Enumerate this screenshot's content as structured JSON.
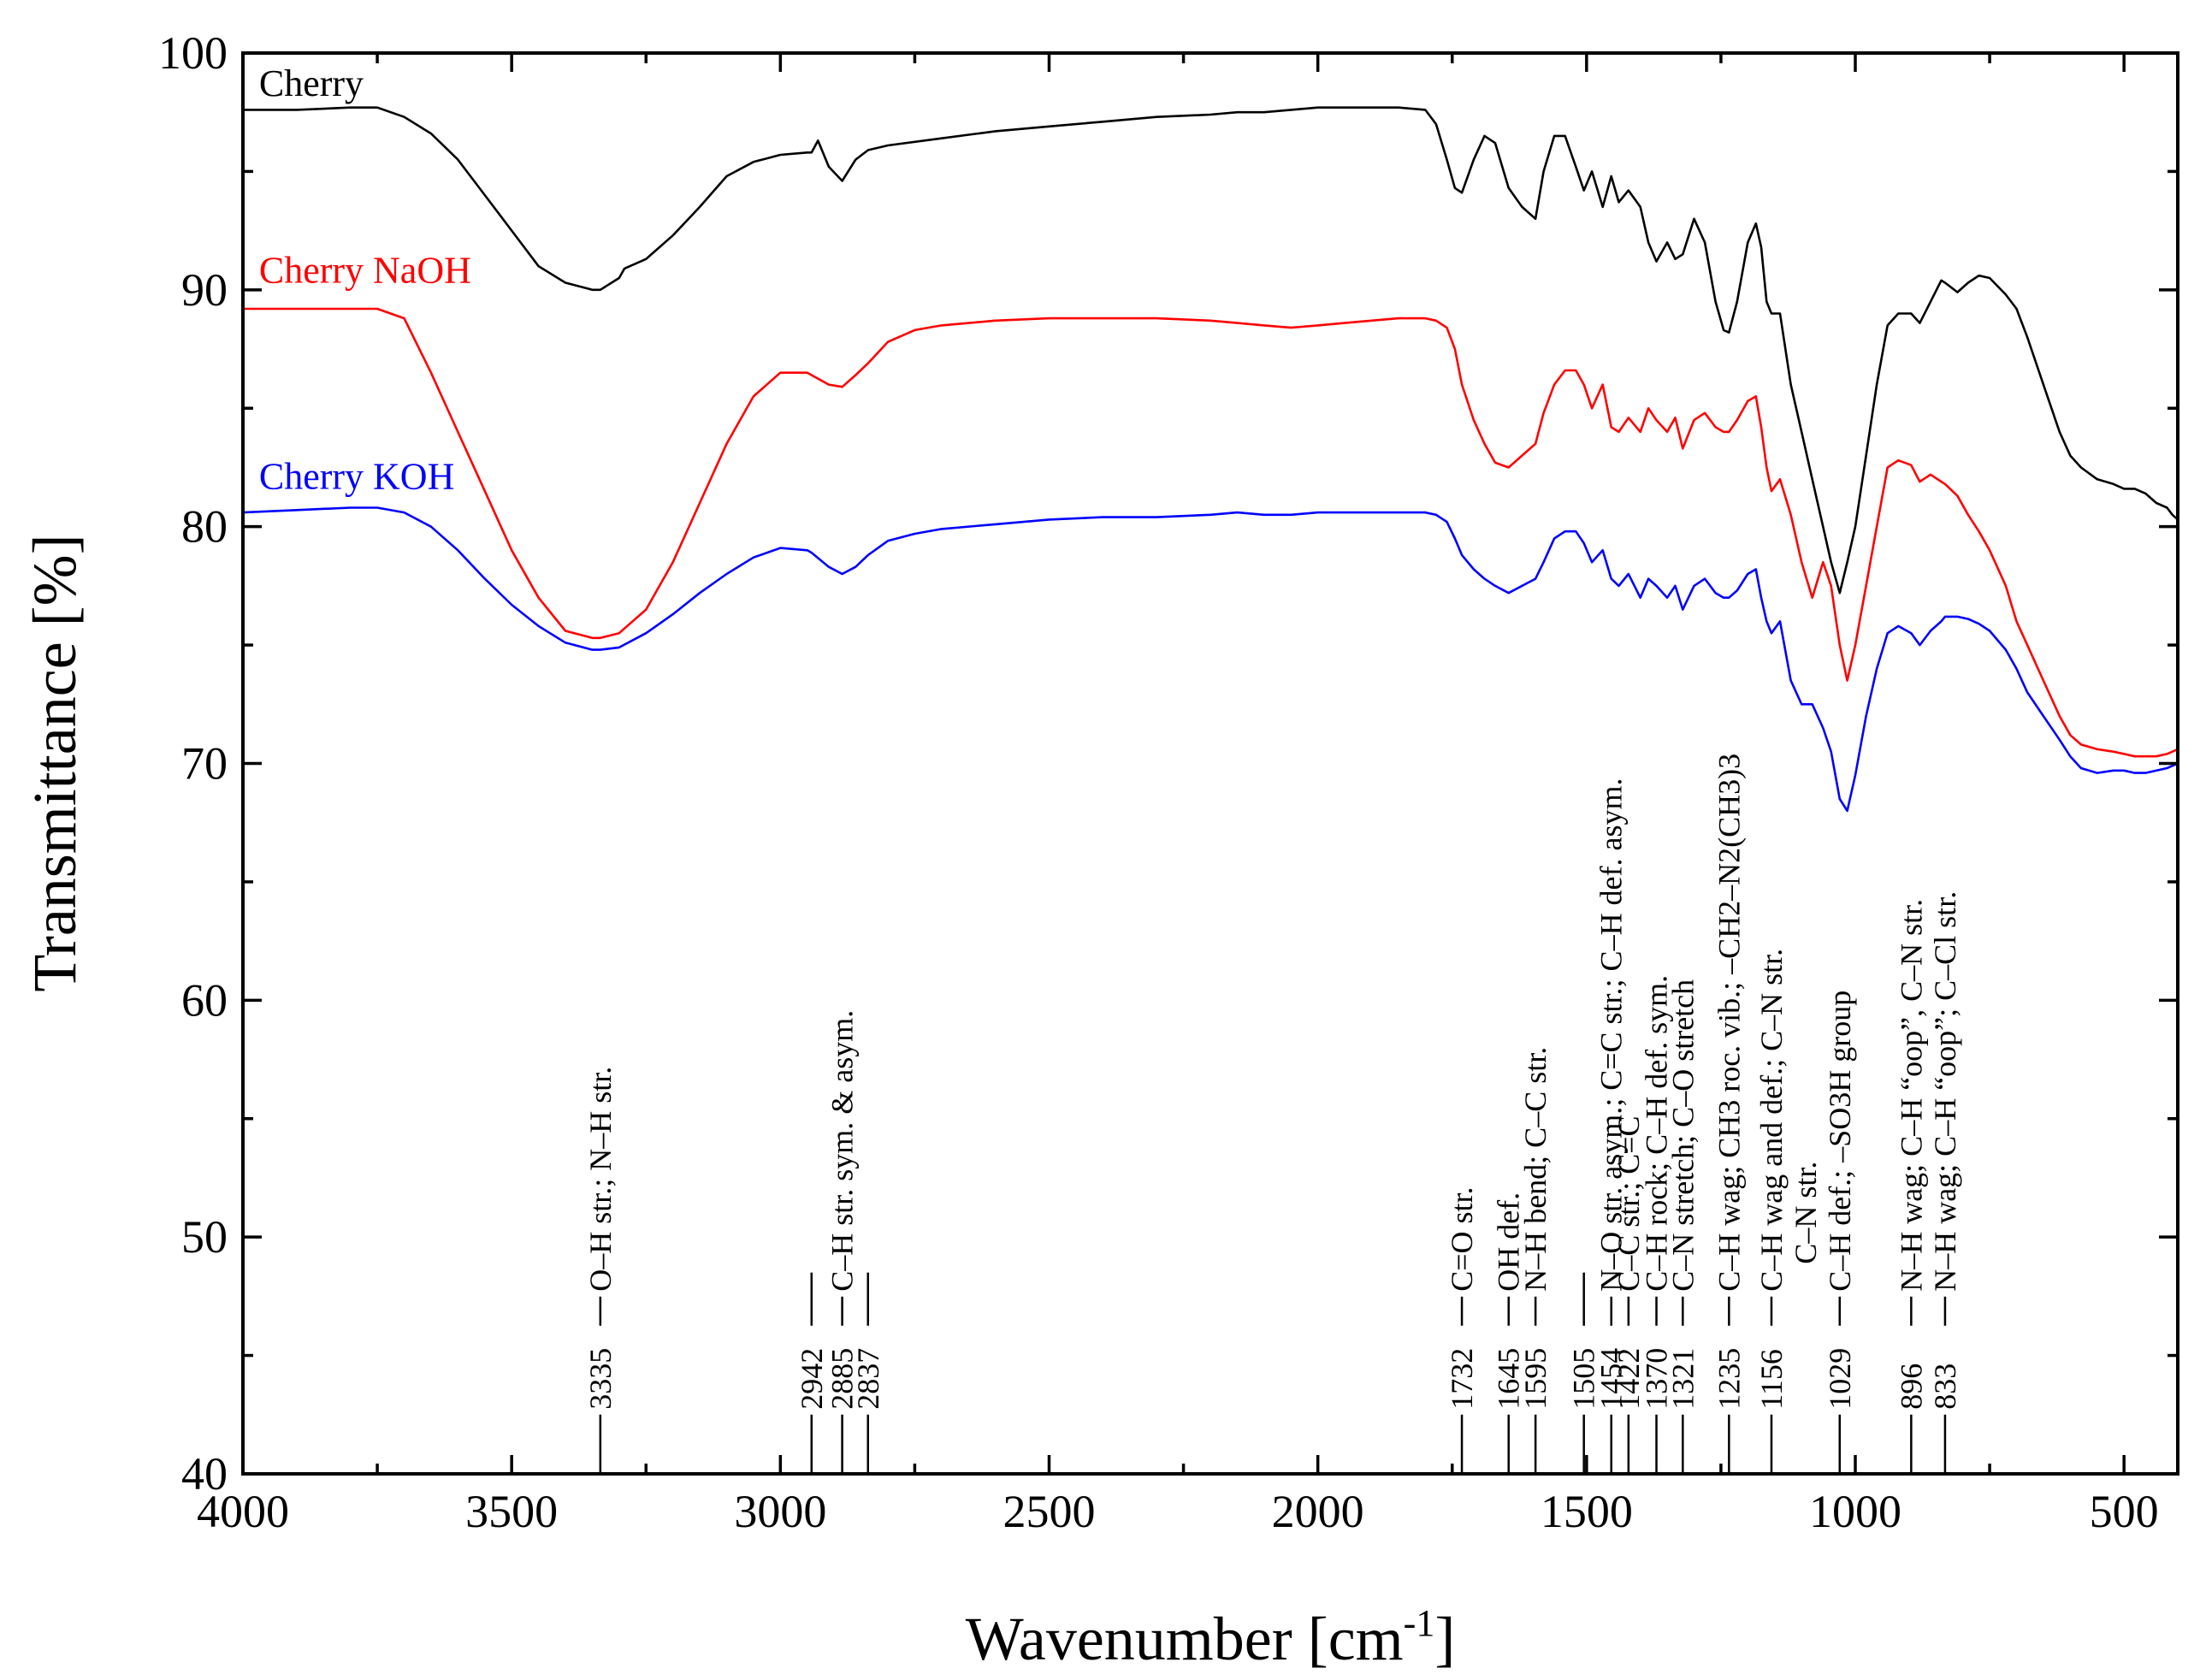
{
  "chart_data": {
    "type": "line",
    "xlabel": "Wavenumber [cm",
    "xlabel_sup": "-1",
    "xlabel_end": "]",
    "ylabel": "Transmittance [%]",
    "xlim": [
      4000,
      400
    ],
    "ylim": [
      40,
      100
    ],
    "x_ticks": [
      {
        "value": 4000,
        "label": "4000"
      },
      {
        "value": 3500,
        "label": "3500"
      },
      {
        "value": 3000,
        "label": "3000"
      },
      {
        "value": 2500,
        "label": "2500"
      },
      {
        "value": 2000,
        "label": "2000"
      },
      {
        "value": 1500,
        "label": "1500"
      },
      {
        "value": 1000,
        "label": "1000"
      },
      {
        "value": 500,
        "label": "500"
      }
    ],
    "y_ticks": [
      {
        "value": 40,
        "label": "40"
      },
      {
        "value": 50,
        "label": "50"
      },
      {
        "value": 60,
        "label": "60"
      },
      {
        "value": 70,
        "label": "70"
      },
      {
        "value": 80,
        "label": "80"
      },
      {
        "value": 90,
        "label": "90"
      },
      {
        "value": 100,
        "label": "100"
      }
    ],
    "series": [
      {
        "name": "Cherry",
        "label": "Cherry",
        "color": "#000000",
        "label_pos": [
          3970,
          98.2
        ],
        "x": [
          4000,
          3900,
          3800,
          3750,
          3700,
          3650,
          3600,
          3550,
          3500,
          3450,
          3400,
          3350,
          3335,
          3300,
          3290,
          3250,
          3200,
          3150,
          3100,
          3050,
          3000,
          2950,
          2942,
          2930,
          2910,
          2885,
          2860,
          2837,
          2800,
          2700,
          2600,
          2500,
          2400,
          2300,
          2200,
          2150,
          2100,
          2050,
          2000,
          1950,
          1900,
          1850,
          1800,
          1780,
          1760,
          1745,
          1732,
          1710,
          1690,
          1670,
          1645,
          1620,
          1595,
          1580,
          1560,
          1540,
          1520,
          1505,
          1490,
          1470,
          1454,
          1440,
          1422,
          1400,
          1385,
          1370,
          1350,
          1335,
          1321,
          1300,
          1280,
          1260,
          1245,
          1235,
          1220,
          1200,
          1185,
          1175,
          1165,
          1156,
          1140,
          1120,
          1100,
          1080,
          1060,
          1045,
          1029,
          1015,
          1000,
          980,
          960,
          940,
          920,
          896,
          880,
          860,
          840,
          833,
          810,
          790,
          770,
          750,
          720,
          700,
          680,
          650,
          620,
          600,
          580,
          550,
          520,
          500,
          480,
          460,
          440,
          420,
          410,
          400
        ],
        "y": [
          97.6,
          97.6,
          97.7,
          97.7,
          97.3,
          96.6,
          95.5,
          94.0,
          92.5,
          91.0,
          90.3,
          90.0,
          90.0,
          90.5,
          90.9,
          91.3,
          92.3,
          93.5,
          94.8,
          95.4,
          95.7,
          95.8,
          95.8,
          96.3,
          95.2,
          94.6,
          95.5,
          95.9,
          96.1,
          96.4,
          96.7,
          96.9,
          97.1,
          97.3,
          97.4,
          97.5,
          97.5,
          97.6,
          97.7,
          97.7,
          97.7,
          97.7,
          97.6,
          97.0,
          95.5,
          94.3,
          94.1,
          95.5,
          96.5,
          96.2,
          94.3,
          93.5,
          93.0,
          95.0,
          96.5,
          96.5,
          95.2,
          94.2,
          95.0,
          93.5,
          94.8,
          93.7,
          94.2,
          93.5,
          92.0,
          91.2,
          92.0,
          91.3,
          91.5,
          93.0,
          92.0,
          89.5,
          88.3,
          88.2,
          89.5,
          92.0,
          92.8,
          91.8,
          89.5,
          89.0,
          89.0,
          86.0,
          84.0,
          82.0,
          80.0,
          78.5,
          77.2,
          78.5,
          80.0,
          83.0,
          86.0,
          88.5,
          89.0,
          89.0,
          88.6,
          89.5,
          90.4,
          90.3,
          89.9,
          90.3,
          90.6,
          90.5,
          89.8,
          89.2,
          88.0,
          86.0,
          84.0,
          83.0,
          82.5,
          82.0,
          81.8,
          81.6,
          81.6,
          81.4,
          81.0,
          80.8,
          80.5,
          80.3
        ]
      },
      {
        "name": "Cherry NaOH",
        "label": "Cherry NaOH",
        "color": "#ff0000",
        "label_pos": [
          3970,
          90.3
        ],
        "x": [
          4000,
          3900,
          3800,
          3750,
          3700,
          3650,
          3600,
          3550,
          3500,
          3450,
          3400,
          3350,
          3335,
          3300,
          3250,
          3200,
          3150,
          3100,
          3050,
          3000,
          2950,
          2942,
          2910,
          2885,
          2860,
          2837,
          2800,
          2750,
          2700,
          2600,
          2500,
          2400,
          2300,
          2200,
          2150,
          2100,
          2050,
          2000,
          1950,
          1900,
          1850,
          1800,
          1780,
          1760,
          1745,
          1732,
          1710,
          1690,
          1670,
          1645,
          1620,
          1595,
          1580,
          1560,
          1540,
          1520,
          1505,
          1490,
          1470,
          1454,
          1440,
          1422,
          1400,
          1385,
          1370,
          1350,
          1335,
          1321,
          1300,
          1280,
          1260,
          1245,
          1235,
          1220,
          1200,
          1185,
          1175,
          1165,
          1156,
          1140,
          1120,
          1100,
          1080,
          1060,
          1045,
          1029,
          1015,
          1000,
          980,
          960,
          940,
          920,
          896,
          880,
          860,
          840,
          833,
          810,
          790,
          770,
          750,
          720,
          700,
          680,
          650,
          620,
          600,
          580,
          550,
          520,
          500,
          480,
          460,
          440,
          420,
          410,
          400
        ],
        "y": [
          89.2,
          89.2,
          89.2,
          89.2,
          88.8,
          86.5,
          84.0,
          81.5,
          79.0,
          77.0,
          75.6,
          75.3,
          75.3,
          75.5,
          76.5,
          78.5,
          81.0,
          83.5,
          85.5,
          86.5,
          86.5,
          86.4,
          86.0,
          85.9,
          86.4,
          86.9,
          87.8,
          88.3,
          88.5,
          88.7,
          88.8,
          88.8,
          88.8,
          88.7,
          88.6,
          88.5,
          88.4,
          88.5,
          88.6,
          88.7,
          88.8,
          88.8,
          88.7,
          88.4,
          87.5,
          86.0,
          84.5,
          83.5,
          82.7,
          82.5,
          83.0,
          83.5,
          84.8,
          86.0,
          86.6,
          86.6,
          86.0,
          85.0,
          86.0,
          84.2,
          84.0,
          84.6,
          84.0,
          85.0,
          84.5,
          84.0,
          84.6,
          83.3,
          84.5,
          84.8,
          84.2,
          84.0,
          84.0,
          84.5,
          85.3,
          85.5,
          84.2,
          82.5,
          81.5,
          82.0,
          80.5,
          78.5,
          77.0,
          78.5,
          77.5,
          75.0,
          73.5,
          75.0,
          77.5,
          80.0,
          82.5,
          82.8,
          82.6,
          81.9,
          82.2,
          81.9,
          81.8,
          81.3,
          80.5,
          79.8,
          79.0,
          77.5,
          76.0,
          75.0,
          73.5,
          72.0,
          71.2,
          70.8,
          70.6,
          70.5,
          70.4,
          70.3,
          70.3,
          70.3,
          70.4,
          70.5,
          70.6
        ]
      },
      {
        "name": "Cherry KOH",
        "label": "Cherry KOH",
        "color": "#0000ff",
        "label_pos": [
          3970,
          81.6
        ],
        "x": [
          4000,
          3900,
          3800,
          3750,
          3700,
          3650,
          3600,
          3550,
          3500,
          3450,
          3400,
          3350,
          3335,
          3300,
          3250,
          3200,
          3150,
          3100,
          3050,
          3000,
          2950,
          2942,
          2910,
          2885,
          2860,
          2837,
          2800,
          2750,
          2700,
          2600,
          2500,
          2400,
          2300,
          2200,
          2150,
          2100,
          2050,
          2000,
          1950,
          1900,
          1850,
          1800,
          1780,
          1760,
          1745,
          1732,
          1710,
          1690,
          1670,
          1645,
          1620,
          1595,
          1580,
          1560,
          1540,
          1520,
          1505,
          1490,
          1470,
          1454,
          1440,
          1422,
          1400,
          1385,
          1370,
          1350,
          1335,
          1321,
          1300,
          1280,
          1260,
          1245,
          1235,
          1220,
          1200,
          1185,
          1175,
          1165,
          1156,
          1140,
          1120,
          1100,
          1080,
          1060,
          1045,
          1029,
          1015,
          1000,
          980,
          960,
          940,
          920,
          896,
          880,
          860,
          840,
          833,
          810,
          790,
          770,
          750,
          720,
          700,
          680,
          650,
          620,
          600,
          580,
          550,
          520,
          500,
          480,
          460,
          440,
          420,
          410,
          400
        ],
        "y": [
          80.6,
          80.7,
          80.8,
          80.8,
          80.6,
          80.0,
          79.0,
          77.8,
          76.7,
          75.8,
          75.1,
          74.8,
          74.8,
          74.9,
          75.5,
          76.3,
          77.2,
          78.0,
          78.7,
          79.1,
          79.0,
          78.9,
          78.3,
          78.0,
          78.3,
          78.8,
          79.4,
          79.7,
          79.9,
          80.1,
          80.3,
          80.4,
          80.4,
          80.5,
          80.6,
          80.5,
          80.5,
          80.6,
          80.6,
          80.6,
          80.6,
          80.6,
          80.5,
          80.2,
          79.5,
          78.8,
          78.2,
          77.8,
          77.5,
          77.2,
          77.5,
          77.8,
          78.5,
          79.5,
          79.8,
          79.8,
          79.3,
          78.5,
          79.0,
          77.8,
          77.5,
          78.0,
          77.0,
          77.8,
          77.5,
          77.0,
          77.5,
          76.5,
          77.5,
          77.8,
          77.2,
          77.0,
          77.0,
          77.3,
          78.0,
          78.2,
          77.0,
          76.0,
          75.5,
          76.0,
          73.5,
          72.5,
          72.5,
          71.5,
          70.5,
          68.5,
          68.0,
          69.5,
          72.0,
          74.0,
          75.5,
          75.8,
          75.5,
          75.0,
          75.6,
          76.0,
          76.2,
          76.2,
          76.1,
          75.9,
          75.6,
          74.8,
          74.0,
          73.0,
          72.0,
          71.0,
          70.3,
          69.8,
          69.6,
          69.7,
          69.7,
          69.6,
          69.6,
          69.7,
          69.8,
          69.9,
          70.0
        ]
      }
    ],
    "annotations": [
      {
        "x": 3335,
        "num": "3335",
        "label": "O–H str.; N–H str.",
        "top": 56.5
      },
      {
        "x": 2942,
        "num": "2942",
        "label": "",
        "top": 48.5
      },
      {
        "x": 2885,
        "num": "2885",
        "label": "C–H str. sym. & asym.",
        "top": 58.5
      },
      {
        "x": 2837,
        "num": "2837",
        "label": "",
        "top": 48.5
      },
      {
        "x": 1732,
        "num": "1732",
        "label": "C=O str.",
        "top": 48.5
      },
      {
        "x": 1645,
        "num": "1645",
        "label": "OH def.",
        "top": 48.5
      },
      {
        "x": 1595,
        "num": "1595",
        "label": "N–H bend; C–C str.",
        "top": 48.5
      },
      {
        "x": 1505,
        "num": "1505",
        "label": "",
        "top": 48.5
      },
      {
        "x": 1454,
        "num": "1454",
        "label": "N–O str. asym.; C=C str.; C–H def. asym.",
        "top": 48.5
      },
      {
        "x": 1422,
        "num": "1422",
        "label": "C–C str.; C=C",
        "top": 48.5
      },
      {
        "x": 1370,
        "num": "1370",
        "label": "C–H rock; C–H def. sym.",
        "top": 48.5
      },
      {
        "x": 1321,
        "num": "1321",
        "label": "C–N stretch; C–O stretch",
        "top": 48.5
      },
      {
        "x": 1235,
        "num": "1235",
        "label": "C–H wag; CH3 roc. vib.; –CH2–N2(CH3)3",
        "top": 48.5
      },
      {
        "x": 1156,
        "num": "1156",
        "label": "C–H wag and def.; C–N str.",
        "top": 48.5
      },
      {
        "x": 1029,
        "num": "1029",
        "label": "C–H def.; –SO3H group",
        "top": 48.5
      },
      {
        "x": 1029,
        "num": "",
        "label": "C–N str.",
        "top": 48.5,
        "offset": -1
      },
      {
        "x": 896,
        "num": "896",
        "label": "N–H wag; C–H “oop”, C–N str.",
        "top": 48.5
      },
      {
        "x": 833,
        "num": "833",
        "label": "N–H wag; C–H “oop”; C–Cl str.",
        "top": 48.5
      }
    ]
  }
}
